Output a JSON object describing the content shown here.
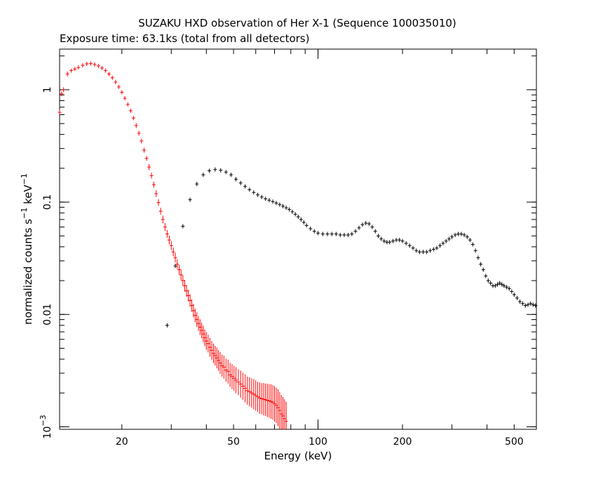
{
  "chart_data": {
    "type": "scatter",
    "title": "SUZAKU HXD observation of Her X-1 (Sequence 100035010)",
    "subtitle": "Exposure time: 63.1ks (total from all detectors)",
    "xlabel": "Energy (keV)",
    "ylabel_parts": {
      "base": "normalized counts s",
      "exp1": "−1",
      "mid": " keV",
      "exp2": "−1"
    },
    "xscale": "log",
    "yscale": "log",
    "xlim": [
      12,
      600
    ],
    "ylim": [
      0.00095,
      2.3
    ],
    "grid": false,
    "x_ticks": [
      {
        "value": 20,
        "label": "20"
      },
      {
        "value": 50,
        "label": "50"
      },
      {
        "value": 100,
        "label": "100"
      },
      {
        "value": 200,
        "label": "200"
      },
      {
        "value": 500,
        "label": "500"
      }
    ],
    "y_ticks": [
      {
        "value": 1,
        "label": "1",
        "sup": ""
      },
      {
        "value": 0.1,
        "label": "0.1",
        "sup": ""
      },
      {
        "value": 0.01,
        "label": "0.01",
        "sup": ""
      },
      {
        "value": 0.001,
        "label": "10",
        "sup": "−3"
      }
    ],
    "series": [
      {
        "color": "#ff0000",
        "points": [
          [
            12.0,
            0.63,
            0.05
          ],
          [
            12.2,
            0.92,
            0.05
          ],
          [
            12.4,
            1.0,
            0.05
          ],
          [
            12.8,
            1.38,
            0.05
          ],
          [
            13.2,
            1.48,
            0.04
          ],
          [
            13.6,
            1.53,
            0.04
          ],
          [
            14.0,
            1.58,
            0.04
          ],
          [
            14.5,
            1.65,
            0.04
          ],
          [
            15.0,
            1.7,
            0.04
          ],
          [
            15.5,
            1.71,
            0.04
          ],
          [
            16.0,
            1.68,
            0.04
          ],
          [
            16.5,
            1.63,
            0.04
          ],
          [
            17.0,
            1.56,
            0.04
          ],
          [
            17.5,
            1.48,
            0.04
          ],
          [
            18.0,
            1.38,
            0.04
          ],
          [
            18.5,
            1.28,
            0.04
          ],
          [
            19.0,
            1.17,
            0.04
          ],
          [
            19.5,
            1.06,
            0.04
          ],
          [
            20.0,
            0.95,
            0.04
          ],
          [
            20.5,
            0.84,
            0.04
          ],
          [
            21.0,
            0.74,
            0.04
          ],
          [
            21.5,
            0.65,
            0.04
          ],
          [
            22.0,
            0.56,
            0.04
          ],
          [
            22.5,
            0.48,
            0.05
          ],
          [
            23.0,
            0.41,
            0.05
          ],
          [
            23.5,
            0.35,
            0.05
          ],
          [
            24.0,
            0.29,
            0.05
          ],
          [
            24.5,
            0.245,
            0.05
          ],
          [
            25.0,
            0.205,
            0.06
          ],
          [
            25.5,
            0.172,
            0.06
          ],
          [
            26.0,
            0.143,
            0.06
          ],
          [
            26.5,
            0.119,
            0.07
          ],
          [
            27.0,
            0.099,
            0.07
          ],
          [
            27.5,
            0.083,
            0.07
          ],
          [
            28.0,
            0.07,
            0.08
          ],
          [
            28.5,
            0.06,
            0.08
          ],
          [
            29.0,
            0.052,
            0.08
          ],
          [
            29.5,
            0.046,
            0.09
          ],
          [
            30.0,
            0.041,
            0.09
          ],
          [
            30.5,
            0.036,
            0.09
          ],
          [
            31.0,
            0.032,
            0.1
          ],
          [
            31.5,
            0.028,
            0.1
          ],
          [
            32.0,
            0.025,
            0.1
          ],
          [
            32.5,
            0.0225,
            0.11
          ],
          [
            33.0,
            0.02,
            0.11
          ],
          [
            33.5,
            0.018,
            0.12
          ],
          [
            34.0,
            0.0162,
            0.12
          ],
          [
            34.5,
            0.0147,
            0.12
          ],
          [
            35.0,
            0.0133,
            0.13
          ],
          [
            35.5,
            0.012,
            0.13
          ],
          [
            36.0,
            0.0108,
            0.14
          ],
          [
            36.5,
            0.0098,
            0.14
          ],
          [
            37.0,
            0.009,
            0.15
          ],
          [
            37.5,
            0.0083,
            0.15
          ],
          [
            38.0,
            0.0077,
            0.16
          ],
          [
            38.5,
            0.0072,
            0.16
          ],
          [
            39.0,
            0.0067,
            0.17
          ],
          [
            39.5,
            0.0062,
            0.17
          ],
          [
            40.0,
            0.0058,
            0.18
          ],
          [
            40.6,
            0.0055,
            0.18
          ],
          [
            41.2,
            0.0051,
            0.19
          ],
          [
            41.8,
            0.0048,
            0.19
          ],
          [
            42.4,
            0.0045,
            0.2
          ],
          [
            43.0,
            0.0043,
            0.2
          ],
          [
            43.6,
            0.0041,
            0.21
          ],
          [
            44.2,
            0.0039,
            0.21
          ],
          [
            44.8,
            0.0037,
            0.22
          ],
          [
            45.5,
            0.0035,
            0.22
          ],
          [
            46.2,
            0.0034,
            0.23
          ],
          [
            47.0,
            0.0032,
            0.23
          ],
          [
            47.8,
            0.0031,
            0.24
          ],
          [
            48.6,
            0.0029,
            0.24
          ],
          [
            49.4,
            0.0028,
            0.25
          ],
          [
            50.2,
            0.0027,
            0.25
          ],
          [
            51.0,
            0.0026,
            0.26
          ],
          [
            52.0,
            0.0025,
            0.26
          ],
          [
            53.0,
            0.0024,
            0.27
          ],
          [
            54.0,
            0.0023,
            0.27
          ],
          [
            55.0,
            0.0022,
            0.28
          ],
          [
            56.0,
            0.0021,
            0.28
          ],
          [
            57.0,
            0.00205,
            0.29
          ],
          [
            58.0,
            0.002,
            0.29
          ],
          [
            59.0,
            0.00195,
            0.3
          ],
          [
            60.0,
            0.0019,
            0.3
          ],
          [
            61.0,
            0.00185,
            0.3
          ],
          [
            62.0,
            0.0018,
            0.31
          ],
          [
            63.0,
            0.00178,
            0.31
          ],
          [
            64.0,
            0.00176,
            0.32
          ],
          [
            65.0,
            0.00174,
            0.32
          ],
          [
            66.0,
            0.00172,
            0.33
          ],
          [
            67.0,
            0.0017,
            0.33
          ],
          [
            68.0,
            0.00168,
            0.34
          ],
          [
            69.0,
            0.00165,
            0.34
          ],
          [
            70.0,
            0.0016,
            0.35
          ],
          [
            71.0,
            0.00155,
            0.35
          ],
          [
            72.0,
            0.00148,
            0.36
          ],
          [
            73.0,
            0.0014,
            0.36
          ],
          [
            74.0,
            0.0013,
            0.37
          ],
          [
            75.0,
            0.00125,
            0.37
          ],
          [
            76.0,
            0.00118,
            0.38
          ],
          [
            77.0,
            0.00112,
            0.38
          ]
        ]
      },
      {
        "color": "#000000",
        "points": [
          [
            29.0,
            0.008,
            0.0
          ],
          [
            31.0,
            0.027,
            0.0
          ],
          [
            33.0,
            0.061,
            0.0
          ],
          [
            35.0,
            0.105,
            0.0
          ],
          [
            37.0,
            0.145,
            0.0
          ],
          [
            39.0,
            0.175,
            0.0
          ],
          [
            41.0,
            0.19,
            0.0
          ],
          [
            43.0,
            0.195,
            0.0
          ],
          [
            45.0,
            0.192,
            0.0
          ],
          [
            47.0,
            0.185,
            0.0
          ],
          [
            49.0,
            0.175,
            0.0
          ],
          [
            51.0,
            0.16,
            0.0
          ],
          [
            53.0,
            0.148,
            0.0
          ],
          [
            55.0,
            0.138,
            0.0
          ],
          [
            57.0,
            0.129,
            0.0
          ],
          [
            59.0,
            0.122,
            0.0
          ],
          [
            61.0,
            0.116,
            0.0
          ],
          [
            63.0,
            0.111,
            0.0
          ],
          [
            65.0,
            0.107,
            0.0
          ],
          [
            67.0,
            0.104,
            0.0
          ],
          [
            69.0,
            0.101,
            0.0
          ],
          [
            71.0,
            0.098,
            0.0
          ],
          [
            73.0,
            0.095,
            0.0
          ],
          [
            75.0,
            0.092,
            0.0
          ],
          [
            77.0,
            0.089,
            0.0
          ],
          [
            79.0,
            0.086,
            0.0
          ],
          [
            81.0,
            0.082,
            0.0
          ],
          [
            83.0,
            0.078,
            0.0
          ],
          [
            85.0,
            0.074,
            0.0
          ],
          [
            87.0,
            0.07,
            0.0
          ],
          [
            89.0,
            0.066,
            0.0
          ],
          [
            91.0,
            0.062,
            0.0
          ],
          [
            94.0,
            0.058,
            0.0
          ],
          [
            97.0,
            0.055,
            0.0
          ],
          [
            100.0,
            0.053,
            0.0
          ],
          [
            104.0,
            0.052,
            0.0
          ],
          [
            108.0,
            0.052,
            0.0
          ],
          [
            112.0,
            0.052,
            0.0
          ],
          [
            116.0,
            0.052,
            0.0
          ],
          [
            120.0,
            0.051,
            0.0
          ],
          [
            124.0,
            0.051,
            0.0
          ],
          [
            128.0,
            0.051,
            0.0
          ],
          [
            132.0,
            0.052,
            0.0
          ],
          [
            136.0,
            0.055,
            0.0
          ],
          [
            140.0,
            0.059,
            0.0
          ],
          [
            144.0,
            0.063,
            0.0
          ],
          [
            148.0,
            0.065,
            0.0
          ],
          [
            152.0,
            0.064,
            0.0
          ],
          [
            156.0,
            0.06,
            0.0
          ],
          [
            160.0,
            0.055,
            0.0
          ],
          [
            164.0,
            0.05,
            0.0
          ],
          [
            168.0,
            0.047,
            0.0
          ],
          [
            172.0,
            0.045,
            0.0
          ],
          [
            176.0,
            0.044,
            0.0
          ],
          [
            180.0,
            0.044,
            0.0
          ],
          [
            185.0,
            0.045,
            0.0
          ],
          [
            190.0,
            0.046,
            0.0
          ],
          [
            195.0,
            0.046,
            0.0
          ],
          [
            200.0,
            0.045,
            0.0
          ],
          [
            206.0,
            0.043,
            0.0
          ],
          [
            212.0,
            0.041,
            0.0
          ],
          [
            218.0,
            0.039,
            0.0
          ],
          [
            224.0,
            0.037,
            0.0
          ],
          [
            230.0,
            0.036,
            0.0
          ],
          [
            237.0,
            0.036,
            0.0
          ],
          [
            244.0,
            0.036,
            0.0
          ],
          [
            251.0,
            0.037,
            0.0
          ],
          [
            258.0,
            0.038,
            0.0
          ],
          [
            265.0,
            0.039,
            0.0
          ],
          [
            272.0,
            0.041,
            0.0
          ],
          [
            279.0,
            0.043,
            0.0
          ],
          [
            286.0,
            0.045,
            0.0
          ],
          [
            293.0,
            0.047,
            0.0
          ],
          [
            300.0,
            0.049,
            0.0
          ],
          [
            308.0,
            0.051,
            0.0
          ],
          [
            316.0,
            0.052,
            0.0
          ],
          [
            324.0,
            0.052,
            0.0
          ],
          [
            332.0,
            0.051,
            0.0
          ],
          [
            340.0,
            0.049,
            0.0
          ],
          [
            348.0,
            0.046,
            0.0
          ],
          [
            356.0,
            0.042,
            0.0
          ],
          [
            364.0,
            0.037,
            0.0
          ],
          [
            372.0,
            0.032,
            0.0
          ],
          [
            380.0,
            0.028,
            0.0
          ],
          [
            388.0,
            0.025,
            0.0
          ],
          [
            396.0,
            0.022,
            0.0
          ],
          [
            404.0,
            0.02,
            0.0
          ],
          [
            412.0,
            0.019,
            0.0
          ],
          [
            420.0,
            0.018,
            0.0
          ],
          [
            428.0,
            0.018,
            0.0
          ],
          [
            436.0,
            0.0185,
            0.0
          ],
          [
            444.0,
            0.019,
            0.0
          ],
          [
            452.0,
            0.0185,
            0.0
          ],
          [
            460.0,
            0.018,
            0.0
          ],
          [
            470.0,
            0.0175,
            0.0
          ],
          [
            480.0,
            0.017,
            0.0
          ],
          [
            490.0,
            0.016,
            0.0
          ],
          [
            500.0,
            0.015,
            0.0
          ],
          [
            512.0,
            0.014,
            0.0
          ],
          [
            524.0,
            0.013,
            0.0
          ],
          [
            536.0,
            0.0125,
            0.0
          ],
          [
            548.0,
            0.012,
            0.0
          ],
          [
            560.0,
            0.0122,
            0.0
          ],
          [
            572.0,
            0.0125,
            0.0
          ],
          [
            584.0,
            0.0122,
            0.0
          ],
          [
            596.0,
            0.012,
            0.0
          ]
        ]
      }
    ]
  }
}
